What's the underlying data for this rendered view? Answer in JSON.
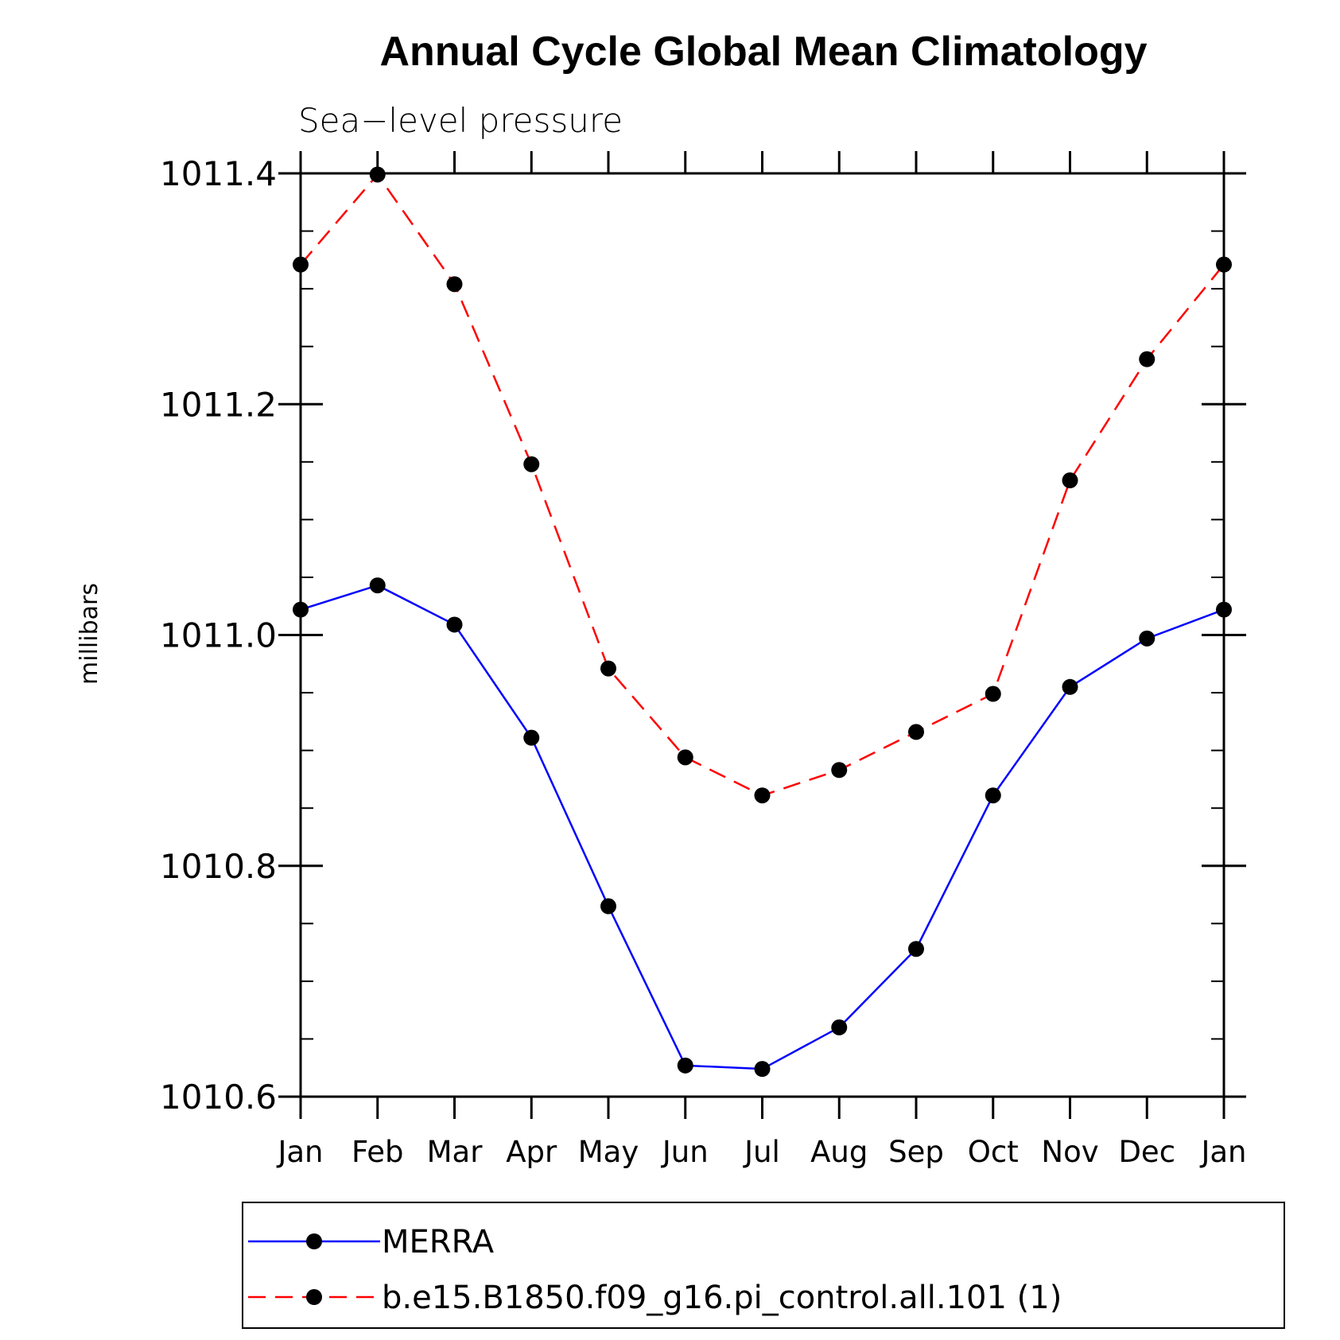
{
  "chart_data": {
    "type": "line",
    "title": "Annual Cycle Global Mean Climatology",
    "subtitle": "Sea−level pressure",
    "xlabel": "",
    "ylabel": "millibars",
    "categories": [
      "Jan",
      "Feb",
      "Mar",
      "Apr",
      "May",
      "Jun",
      "Jul",
      "Aug",
      "Sep",
      "Oct",
      "Nov",
      "Dec",
      "Jan"
    ],
    "ylim": [
      1010.6,
      1011.4
    ],
    "yticks": [
      1010.6,
      1010.8,
      1011.0,
      1011.2,
      1011.4
    ],
    "ytick_labels": [
      "1010.6",
      "1010.8",
      "1011.0",
      "1011.2",
      "1011.4"
    ],
    "series": [
      {
        "name": "MERRA",
        "color": "#0000ff",
        "dash": "solid",
        "values": [
          1011.022,
          1011.043,
          1011.009,
          1010.911,
          1010.765,
          1010.627,
          1010.624,
          1010.66,
          1010.728,
          1010.861,
          1010.955,
          1010.997,
          1011.022
        ]
      },
      {
        "name": "b.e15.B1850.f09_g16.pi_control.all.101 (1)",
        "color": "#ff0000",
        "dash": "dashed",
        "values": [
          1011.321,
          1011.399,
          1011.304,
          1011.148,
          1010.971,
          1010.894,
          1010.861,
          1010.883,
          1010.916,
          1010.949,
          1011.134,
          1011.239,
          1011.321
        ]
      }
    ],
    "legend_position": "bottom"
  }
}
